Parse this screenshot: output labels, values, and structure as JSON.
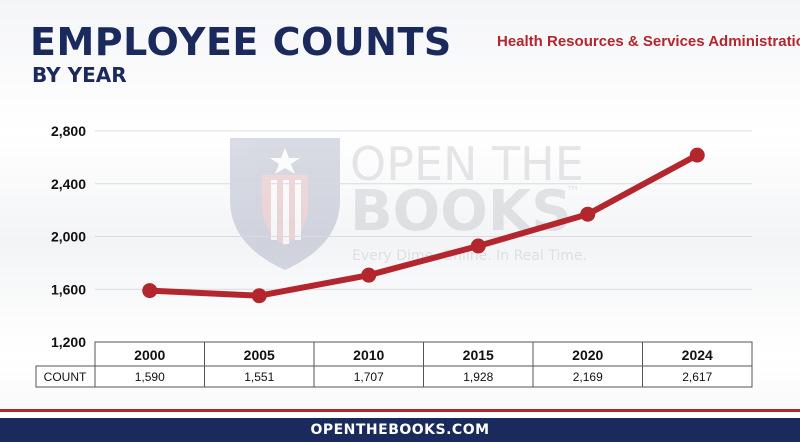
{
  "header": {
    "title": "EMPLOYEE COUNTS",
    "subtitle": "BY YEAR",
    "agency": "Health Resources & Services Administration"
  },
  "watermark": {
    "line1": "OPEN THE",
    "line2": "BOOKS",
    "trademark": "™",
    "tagline": "Every Dime. Online. In Real Time."
  },
  "table": {
    "row_label": "COUNT"
  },
  "footer": {
    "text": "OPENTHEBOOKS.COM"
  },
  "colors": {
    "title": "#1b2a5c",
    "line": "#b3262d",
    "agency": "#b3262d",
    "footer": "#1b2a5c"
  },
  "chart_data": {
    "type": "line",
    "title": "EMPLOYEE COUNTS",
    "subtitle": "BY YEAR",
    "categories": [
      "2000",
      "2005",
      "2010",
      "2015",
      "2020",
      "2024"
    ],
    "series": [
      {
        "values": [
          1590,
          1551,
          1707,
          1928,
          2169,
          2617
        ],
        "labels": [
          "1,590",
          "1,551",
          "1,707",
          "1,928",
          "2,169",
          "2,617"
        ]
      }
    ],
    "yticks": [
      1200,
      1600,
      2000,
      2400,
      2800
    ],
    "ytick_labels": [
      "1,200",
      "1,600",
      "2,000",
      "2,400",
      "2,800"
    ],
    "ylim": [
      1200,
      2800
    ],
    "grid": true,
    "xlabel": "",
    "ylabel": ""
  }
}
